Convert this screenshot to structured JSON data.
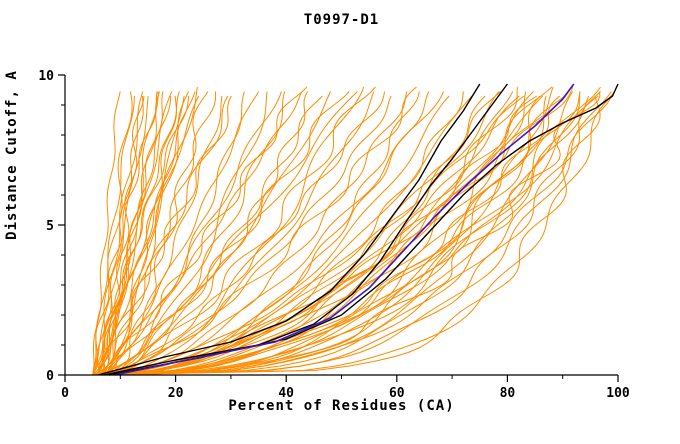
{
  "chart_data": {
    "type": "line",
    "title": "T0997-D1",
    "xlabel": "Percent of Residues (CA)",
    "ylabel": "Distance Cutoff, A",
    "xlim": [
      0,
      100
    ],
    "ylim": [
      0,
      10
    ],
    "x_major_ticks": [
      0,
      20,
      40,
      60,
      80,
      100
    ],
    "x_minor_ticks": [
      10,
      30,
      50,
      70,
      90
    ],
    "y_major_ticks": [
      0,
      5,
      10
    ],
    "y_minor_ticks": [
      1,
      2,
      3,
      4,
      6,
      7,
      8,
      9
    ],
    "grid": false,
    "legend": "none",
    "colors": {
      "model_lines": "#ff8c00",
      "reference_lines": "#000000",
      "highlight_line": "#3a16c8",
      "axis": "#000000"
    },
    "y_top_sample": 9.65,
    "wobble": {
      "amplitude": 1.6,
      "frequency": 1.1
    },
    "orange_curve_param_format": [
      "x_at_cutoff0",
      "x_at_cutoff10",
      "shape_exponent"
    ],
    "orange_curves": [
      [
        5,
        10,
        1.0
      ],
      [
        6,
        12,
        0.9
      ],
      [
        5,
        13,
        1.1
      ],
      [
        7,
        14,
        0.8
      ],
      [
        6,
        15,
        1.2
      ],
      [
        5,
        16,
        0.9
      ],
      [
        8,
        17,
        1.0
      ],
      [
        6,
        18,
        0.85
      ],
      [
        7,
        19,
        1.1
      ],
      [
        5,
        20,
        0.95
      ],
      [
        9,
        21,
        0.9
      ],
      [
        6,
        22,
        1.05
      ],
      [
        8,
        23,
        0.8
      ],
      [
        7,
        24,
        1.0
      ],
      [
        5,
        25,
        0.9
      ],
      [
        6,
        26,
        1.1
      ],
      [
        7,
        15,
        1.3
      ],
      [
        5,
        18,
        1.25
      ],
      [
        8,
        20,
        1.15
      ],
      [
        6,
        24,
        1.2
      ],
      [
        9,
        26,
        0.75
      ],
      [
        7,
        22,
        0.7
      ],
      [
        6,
        28,
        0.8
      ],
      [
        7,
        30,
        0.7
      ],
      [
        5,
        32,
        0.9
      ],
      [
        8,
        34,
        0.65
      ],
      [
        6,
        36,
        0.8
      ],
      [
        7,
        38,
        0.6
      ],
      [
        5,
        40,
        0.75
      ],
      [
        9,
        42,
        0.7
      ],
      [
        6,
        44,
        0.85
      ],
      [
        8,
        46,
        0.6
      ],
      [
        7,
        48,
        0.7
      ],
      [
        5,
        50,
        0.65
      ],
      [
        6,
        52,
        0.75
      ],
      [
        9,
        54,
        0.6
      ],
      [
        7,
        56,
        0.68
      ],
      [
        6,
        58,
        0.58
      ],
      [
        8,
        60,
        0.72
      ],
      [
        5,
        62,
        0.6
      ],
      [
        7,
        64,
        0.55
      ],
      [
        6,
        66,
        0.65
      ],
      [
        9,
        68,
        0.5
      ],
      [
        8,
        70,
        0.6
      ],
      [
        6,
        33,
        1.0
      ],
      [
        7,
        45,
        0.9
      ],
      [
        5,
        55,
        0.8
      ],
      [
        8,
        65,
        0.45
      ],
      [
        6,
        72,
        0.5
      ],
      [
        7,
        74,
        0.45
      ],
      [
        5,
        76,
        0.5
      ],
      [
        8,
        78,
        0.4
      ],
      [
        6,
        80,
        0.48
      ],
      [
        7,
        82,
        0.38
      ],
      [
        5,
        84,
        0.45
      ],
      [
        9,
        86,
        0.35
      ],
      [
        6,
        88,
        0.42
      ],
      [
        8,
        90,
        0.33
      ],
      [
        7,
        92,
        0.4
      ],
      [
        5,
        94,
        0.3
      ],
      [
        6,
        96,
        0.36
      ],
      [
        9,
        98,
        0.28
      ],
      [
        7,
        100,
        0.33
      ],
      [
        6,
        85,
        0.5
      ],
      [
        8,
        87,
        0.46
      ],
      [
        5,
        89,
        0.3
      ],
      [
        7,
        91,
        0.36
      ],
      [
        6,
        93,
        0.42
      ],
      [
        8,
        95,
        0.3
      ],
      [
        5,
        97,
        0.34
      ],
      [
        6,
        99,
        0.27
      ],
      [
        7,
        88,
        0.52
      ],
      [
        9,
        90,
        0.55
      ],
      [
        6,
        92,
        0.5
      ],
      [
        5,
        94,
        0.58
      ],
      [
        8,
        96,
        0.45
      ],
      [
        7,
        98,
        0.4
      ],
      [
        6,
        100,
        0.45
      ],
      [
        5,
        86,
        0.6
      ],
      [
        8,
        82,
        0.55
      ],
      [
        6,
        100,
        0.22
      ],
      [
        5,
        98,
        0.2
      ]
    ],
    "black_curves": [
      [
        [
          7,
          0
        ],
        [
          20,
          0.5
        ],
        [
          35,
          1.0
        ],
        [
          45,
          1.7
        ],
        [
          52,
          2.7
        ],
        [
          57,
          3.8
        ],
        [
          62,
          5.2
        ],
        [
          66,
          6.3
        ],
        [
          70,
          7.2
        ],
        [
          74,
          8.2
        ],
        [
          78,
          9.2
        ],
        [
          80,
          9.7
        ]
      ],
      [
        [
          8,
          0
        ],
        [
          25,
          0.6
        ],
        [
          40,
          1.2
        ],
        [
          50,
          2.0
        ],
        [
          58,
          3.2
        ],
        [
          66,
          4.8
        ],
        [
          72,
          6.0
        ],
        [
          78,
          7.0
        ],
        [
          84,
          7.8
        ],
        [
          90,
          8.4
        ],
        [
          96,
          8.9
        ],
        [
          99,
          9.3
        ],
        [
          100,
          9.7
        ]
      ],
      [
        [
          6,
          0
        ],
        [
          18,
          0.6
        ],
        [
          30,
          1.1
        ],
        [
          40,
          1.8
        ],
        [
          48,
          2.8
        ],
        [
          54,
          4.0
        ],
        [
          60,
          5.5
        ],
        [
          64,
          6.5
        ],
        [
          68,
          7.8
        ],
        [
          72,
          8.8
        ],
        [
          75,
          9.7
        ]
      ]
    ],
    "blue_curve": [
      [
        9,
        0
      ],
      [
        22,
        0.5
      ],
      [
        38,
        1.1
      ],
      [
        48,
        1.9
      ],
      [
        55,
        2.9
      ],
      [
        61,
        4.1
      ],
      [
        67,
        5.3
      ],
      [
        73,
        6.4
      ],
      [
        79,
        7.4
      ],
      [
        85,
        8.3
      ],
      [
        90,
        9.2
      ],
      [
        92,
        9.7
      ]
    ]
  }
}
